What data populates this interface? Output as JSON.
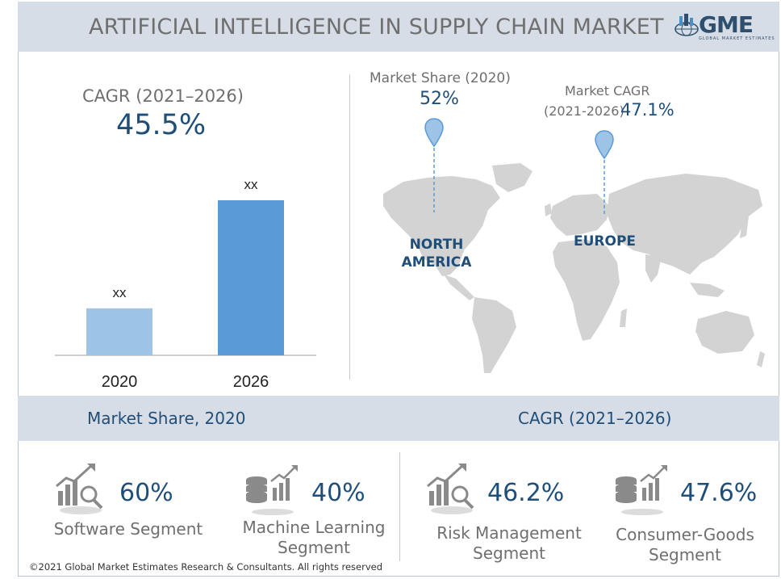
{
  "header": {
    "title": "ARTIFICIAL INTELLIGENCE IN SUPPLY CHAIN MARKET",
    "logo_text": "GME",
    "logo_subtext": "GLOBAL MARKET ESTIMATES"
  },
  "cagr_block": {
    "label": "CAGR (2021–2026)",
    "value": "45.5%"
  },
  "chart_data": {
    "type": "bar",
    "categories": [
      "2020",
      "2026"
    ],
    "values": [
      1,
      3.3
    ],
    "data_labels": [
      "xx",
      "xx"
    ],
    "colors": [
      "#9dc3e6",
      "#5b9bd5"
    ],
    "note_values_are_relative": true
  },
  "map": {
    "north_america": {
      "label": "Market Share (2020)",
      "value": "52%",
      "region": [
        "NORTH",
        "AMERICA"
      ]
    },
    "europe": {
      "label_line1": "Market CAGR",
      "label_line2": "(2021-2026)",
      "value": "47.1%",
      "region": "EUROPE"
    }
  },
  "band": {
    "left_title": "Market Share, 2020",
    "right_title": "CAGR (2021–2026)"
  },
  "stats": [
    {
      "icon": "growth-chart-magnifier-icon",
      "value": "60%",
      "label": [
        "Software Segment"
      ]
    },
    {
      "icon": "database-chart-icon",
      "value": "40%",
      "label": [
        "Machine Learning",
        "Segment"
      ]
    },
    {
      "icon": "growth-chart-magnifier-icon",
      "value": "46.2%",
      "label": [
        "Risk Management",
        "Segment"
      ]
    },
    {
      "icon": "database-chart-icon",
      "value": "47.6%",
      "label": [
        "Consumer-Goods",
        "Segment"
      ]
    }
  ],
  "footer": "©2021 Global Market Estimates Research & Consultants. All rights reserved",
  "colors": {
    "accent": "#1f4e79",
    "band": "#d6dde6",
    "gray_text": "#6f6f6f",
    "map": "#d3d3d3",
    "pin": "#9dc3e6"
  }
}
